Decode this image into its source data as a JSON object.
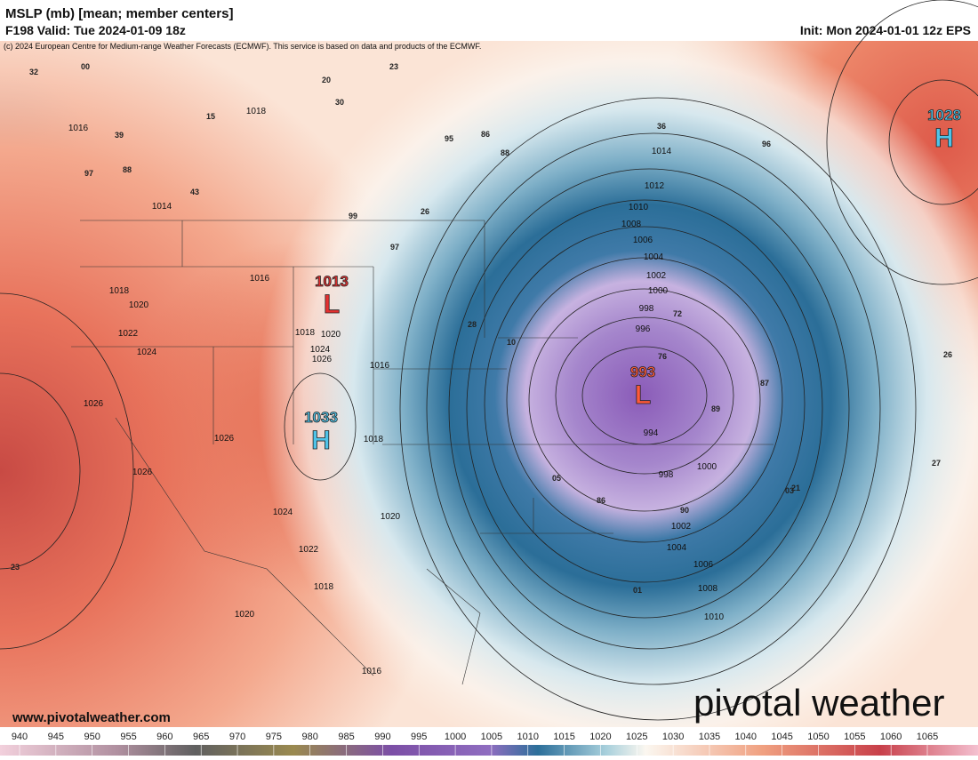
{
  "header": {
    "title": "MSLP (mb) [mean; member centers]",
    "valid": "F198 Valid: Tue 2024-01-09 18z",
    "init": "Init: Mon 2024-01-01 12z EPS",
    "credit": "(c) 2024 European Centre for Medium-range Weather Forecasts (ECMWF). This service is based on data and products of the ECMWF."
  },
  "centers": [
    {
      "value": "1013",
      "letter": "L"
    },
    {
      "value": "1033",
      "letter": "H"
    },
    {
      "value": "993",
      "letter": "L"
    },
    {
      "value": "1028",
      "letter": "H"
    }
  ],
  "isobar_labels": [
    "1016",
    "1014",
    "1018",
    "1016",
    "1018",
    "1020",
    "1022",
    "1024",
    "1026",
    "1026",
    "1026",
    "1024",
    "1022",
    "1018",
    "1020",
    "1016",
    "1020",
    "1018",
    "1016",
    "1018",
    "1020",
    "1024",
    "1026",
    "1014",
    "1012",
    "1010",
    "1008",
    "1006",
    "1004",
    "1002",
    "1000",
    "998",
    "996",
    "994",
    "998",
    "1000",
    "1002",
    "1004",
    "1006",
    "1008",
    "1010"
  ],
  "member_labels": [
    "32",
    "00",
    "39",
    "15",
    "97",
    "88",
    "43",
    "23",
    "20",
    "30",
    "86",
    "88",
    "36",
    "95",
    "99",
    "97",
    "26",
    "28",
    "10",
    "05",
    "86",
    "01",
    "89",
    "90",
    "72",
    "76",
    "87",
    "03",
    "21",
    "27",
    "26",
    "96",
    "23"
  ],
  "colorbar": {
    "ticks": [
      940,
      945,
      950,
      955,
      960,
      965,
      970,
      975,
      980,
      985,
      990,
      995,
      1000,
      1005,
      1010,
      1015,
      1020,
      1025,
      1030,
      1035,
      1040,
      1045,
      1050,
      1055,
      1060,
      1065
    ]
  },
  "footer": {
    "website": "www.pivotalweather.com",
    "logo": "pivotal weather"
  }
}
